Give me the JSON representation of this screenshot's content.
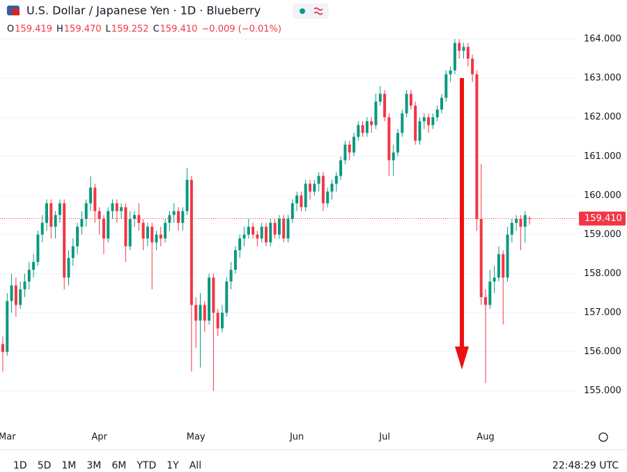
{
  "chart_data": {
    "type": "candlestick",
    "title": "U.S. Dollar / Japanese Yen · 1D · Blueberry",
    "ohlc_header": [
      {
        "label": "O",
        "value": "159.419"
      },
      {
        "label": "H",
        "value": "159.470"
      },
      {
        "label": "L",
        "value": "159.252"
      },
      {
        "label": "C",
        "value": "159.410"
      }
    ],
    "change": "−0.009 (−0.01%)",
    "up_color": "#089981",
    "down_color": "#f23645",
    "grid": true,
    "ylim": [
      154.3,
      165.0
    ],
    "yticks": [
      {
        "value": 155,
        "label": "155.000"
      },
      {
        "value": 156,
        "label": "156.000"
      },
      {
        "value": 157,
        "label": "157.000"
      },
      {
        "value": 158,
        "label": "158.000"
      },
      {
        "value": 159,
        "label": "159.000"
      },
      {
        "value": 160,
        "label": "160.000"
      },
      {
        "value": 161,
        "label": "161.000"
      },
      {
        "value": 162,
        "label": "162.000"
      },
      {
        "value": 163,
        "label": "163.000"
      },
      {
        "value": 164,
        "label": "164.000"
      }
    ],
    "last_price": {
      "value": 159.41,
      "label": "159.410"
    },
    "categories": [
      null,
      "Mar",
      null,
      null,
      null,
      null,
      null,
      null,
      null,
      null,
      null,
      null,
      null,
      null,
      null,
      null,
      null,
      null,
      null,
      null,
      null,
      null,
      "Apr",
      null,
      null,
      null,
      null,
      null,
      null,
      null,
      null,
      null,
      null,
      null,
      null,
      null,
      null,
      null,
      null,
      null,
      null,
      null,
      null,
      null,
      "May",
      null,
      null,
      null,
      null,
      null,
      null,
      null,
      null,
      null,
      null,
      null,
      null,
      null,
      null,
      null,
      null,
      null,
      null,
      null,
      null,
      null,
      null,
      "Jun",
      null,
      null,
      null,
      null,
      null,
      null,
      null,
      null,
      null,
      null,
      null,
      null,
      null,
      null,
      null,
      null,
      null,
      null,
      null,
      "Jul",
      null,
      null,
      null,
      null,
      null,
      null,
      null,
      null,
      null,
      null,
      null,
      null,
      null,
      null,
      null,
      null,
      null,
      null,
      null,
      null,
      null,
      null,
      "Aug",
      null,
      null,
      null,
      null,
      null,
      null,
      null,
      null,
      null,
      null
    ],
    "ohlc": [
      [
        156.2,
        156.4,
        155.5,
        156.0
      ],
      [
        156.0,
        157.5,
        155.9,
        157.3
      ],
      [
        157.3,
        158.0,
        157.0,
        157.7
      ],
      [
        157.7,
        157.9,
        156.9,
        157.2
      ],
      [
        157.2,
        157.8,
        157.1,
        157.6
      ],
      [
        157.6,
        158.0,
        157.4,
        157.8
      ],
      [
        157.8,
        158.3,
        157.6,
        158.1
      ],
      [
        158.1,
        158.5,
        157.9,
        158.3
      ],
      [
        158.3,
        159.1,
        158.2,
        159.0
      ],
      [
        159.0,
        159.5,
        158.8,
        159.3
      ],
      [
        159.3,
        159.9,
        159.1,
        159.8
      ],
      [
        159.8,
        159.9,
        158.9,
        159.2
      ],
      [
        159.2,
        159.6,
        158.9,
        159.5
      ],
      [
        159.5,
        159.9,
        159.3,
        159.8
      ],
      [
        159.8,
        159.9,
        157.6,
        157.9
      ],
      [
        157.9,
        158.6,
        157.7,
        158.4
      ],
      [
        158.4,
        158.9,
        158.2,
        158.7
      ],
      [
        158.7,
        159.3,
        158.5,
        159.2
      ],
      [
        159.2,
        159.6,
        159.0,
        159.4
      ],
      [
        159.4,
        159.9,
        159.2,
        159.8
      ],
      [
        159.8,
        160.5,
        159.6,
        160.2
      ],
      [
        160.2,
        160.3,
        159.3,
        159.6
      ],
      [
        159.6,
        159.7,
        159.0,
        159.4
      ],
      [
        159.4,
        159.5,
        158.5,
        158.9
      ],
      [
        158.9,
        159.7,
        158.8,
        159.6
      ],
      [
        159.6,
        159.9,
        159.4,
        159.8
      ],
      [
        159.8,
        159.9,
        159.3,
        159.6
      ],
      [
        159.6,
        159.8,
        159.4,
        159.7
      ],
      [
        159.7,
        159.8,
        158.3,
        158.7
      ],
      [
        158.7,
        159.6,
        158.6,
        159.4
      ],
      [
        159.4,
        159.6,
        159.2,
        159.5
      ],
      [
        159.5,
        159.8,
        159.1,
        159.3
      ],
      [
        159.3,
        159.4,
        158.6,
        158.9
      ],
      [
        158.9,
        159.3,
        158.7,
        159.2
      ],
      [
        159.2,
        159.3,
        157.6,
        158.8
      ],
      [
        158.8,
        159.1,
        158.6,
        159.0
      ],
      [
        159.0,
        159.2,
        158.7,
        158.9
      ],
      [
        158.9,
        159.4,
        158.8,
        159.3
      ],
      [
        159.3,
        159.6,
        159.1,
        159.5
      ],
      [
        159.5,
        159.8,
        159.3,
        159.6
      ],
      [
        159.6,
        159.7,
        159.1,
        159.3
      ],
      [
        159.3,
        159.7,
        159.1,
        159.6
      ],
      [
        159.6,
        160.7,
        159.5,
        160.4
      ],
      [
        160.4,
        160.5,
        155.5,
        157.2
      ],
      [
        157.2,
        157.4,
        156.1,
        156.8
      ],
      [
        156.8,
        157.5,
        155.6,
        157.2
      ],
      [
        157.2,
        157.3,
        156.5,
        156.8
      ],
      [
        156.8,
        158.0,
        156.7,
        157.9
      ],
      [
        157.9,
        158.0,
        155.0,
        157.0
      ],
      [
        157.0,
        157.1,
        156.4,
        156.6
      ],
      [
        156.6,
        157.2,
        156.5,
        157.0
      ],
      [
        157.0,
        157.9,
        156.9,
        157.8
      ],
      [
        157.8,
        158.3,
        157.6,
        158.1
      ],
      [
        158.1,
        158.7,
        158.0,
        158.6
      ],
      [
        158.6,
        159.0,
        158.4,
        158.9
      ],
      [
        158.9,
        159.2,
        158.7,
        159.0
      ],
      [
        159.0,
        159.4,
        158.9,
        159.2
      ],
      [
        159.2,
        159.3,
        158.9,
        159.0
      ],
      [
        159.0,
        159.1,
        158.7,
        158.9
      ],
      [
        158.9,
        159.3,
        158.8,
        159.2
      ],
      [
        159.2,
        159.3,
        158.7,
        158.8
      ],
      [
        158.8,
        159.4,
        158.7,
        159.3
      ],
      [
        159.3,
        159.4,
        158.9,
        159.0
      ],
      [
        159.0,
        159.5,
        158.9,
        159.4
      ],
      [
        159.4,
        159.5,
        158.8,
        158.9
      ],
      [
        158.9,
        159.5,
        158.8,
        159.4
      ],
      [
        159.4,
        159.9,
        159.3,
        159.8
      ],
      [
        159.8,
        160.1,
        159.6,
        160.0
      ],
      [
        160.0,
        160.1,
        159.6,
        159.7
      ],
      [
        159.7,
        160.4,
        159.6,
        160.3
      ],
      [
        160.3,
        160.4,
        159.9,
        160.1
      ],
      [
        160.1,
        160.4,
        160.0,
        160.3
      ],
      [
        160.3,
        160.6,
        160.1,
        160.5
      ],
      [
        160.5,
        160.6,
        159.6,
        159.8
      ],
      [
        159.8,
        160.2,
        159.7,
        160.1
      ],
      [
        160.1,
        160.4,
        159.9,
        160.3
      ],
      [
        160.3,
        160.6,
        160.1,
        160.5
      ],
      [
        160.5,
        161.0,
        160.4,
        160.9
      ],
      [
        160.9,
        161.4,
        160.8,
        161.3
      ],
      [
        161.3,
        161.4,
        160.9,
        161.1
      ],
      [
        161.1,
        161.6,
        161.0,
        161.5
      ],
      [
        161.5,
        161.9,
        161.4,
        161.8
      ],
      [
        161.8,
        161.9,
        161.5,
        161.6
      ],
      [
        161.6,
        162.0,
        161.5,
        161.9
      ],
      [
        161.9,
        162.0,
        161.6,
        161.8
      ],
      [
        161.8,
        162.6,
        161.7,
        162.4
      ],
      [
        162.4,
        162.8,
        162.3,
        162.6
      ],
      [
        162.6,
        162.7,
        161.9,
        162.0
      ],
      [
        162.0,
        162.1,
        160.5,
        160.9
      ],
      [
        160.9,
        161.3,
        160.5,
        161.1
      ],
      [
        161.1,
        161.7,
        161.0,
        161.6
      ],
      [
        161.6,
        162.2,
        161.5,
        162.1
      ],
      [
        162.1,
        162.7,
        162.0,
        162.6
      ],
      [
        162.6,
        162.7,
        162.2,
        162.3
      ],
      [
        162.3,
        162.4,
        161.3,
        161.4
      ],
      [
        161.4,
        162.0,
        161.3,
        161.9
      ],
      [
        161.9,
        162.1,
        161.7,
        162.0
      ],
      [
        162.0,
        162.1,
        161.6,
        161.8
      ],
      [
        161.8,
        162.1,
        161.7,
        162.0
      ],
      [
        162.0,
        162.3,
        161.9,
        162.2
      ],
      [
        162.2,
        162.6,
        162.1,
        162.5
      ],
      [
        162.5,
        163.2,
        162.4,
        163.1
      ],
      [
        163.1,
        163.3,
        162.9,
        163.2
      ],
      [
        163.2,
        164.0,
        163.1,
        163.9
      ],
      [
        163.9,
        164.0,
        163.5,
        163.7
      ],
      [
        163.7,
        163.9,
        163.5,
        163.8
      ],
      [
        163.8,
        163.9,
        163.3,
        163.5
      ],
      [
        163.5,
        163.6,
        162.9,
        163.1
      ],
      [
        163.1,
        163.2,
        159.1,
        159.4
      ],
      [
        159.4,
        160.8,
        157.2,
        157.4
      ],
      [
        157.4,
        157.6,
        155.2,
        157.2
      ],
      [
        157.2,
        158.1,
        157.1,
        157.8
      ],
      [
        157.8,
        158.2,
        157.5,
        157.9
      ],
      [
        157.9,
        158.7,
        157.8,
        158.5
      ],
      [
        158.5,
        158.6,
        156.7,
        157.9
      ],
      [
        157.9,
        159.2,
        157.8,
        159.0
      ],
      [
        159.0,
        159.4,
        158.8,
        159.3
      ],
      [
        159.3,
        159.5,
        159.1,
        159.4
      ],
      [
        159.4,
        159.5,
        158.6,
        159.2
      ],
      [
        159.2,
        159.6,
        158.8,
        159.5
      ],
      [
        159.419,
        159.47,
        159.252,
        159.41
      ]
    ],
    "ranges": [
      "1D",
      "5D",
      "1M",
      "3M",
      "6M",
      "YTD",
      "1Y",
      "All"
    ],
    "clock": "22:48:29 UTC"
  }
}
